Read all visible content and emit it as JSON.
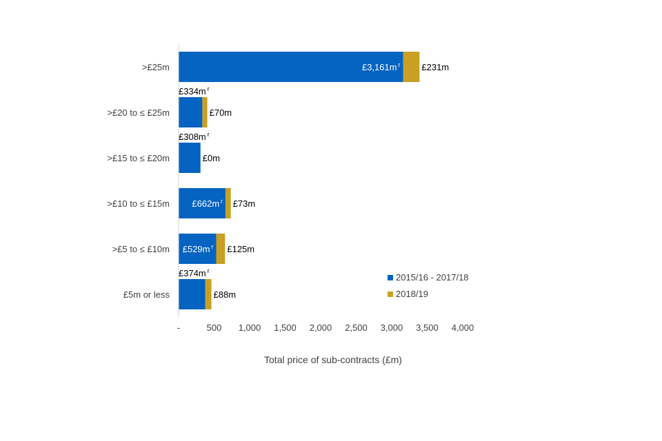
{
  "chart_data": {
    "type": "bar",
    "orientation": "horizontal",
    "stacked": true,
    "categories": [
      ">£25m",
      ">£20 to ≤ £25m",
      ">£15 to ≤ £20m",
      ">£10 to ≤ £15m",
      ">£5 to ≤ £10m",
      "£5m or less"
    ],
    "series": [
      {
        "name": "2015/16 - 2017/18",
        "color": "#0563C1",
        "values": [
          3161,
          334,
          308,
          662,
          529,
          374
        ],
        "labels": [
          "£3,161m",
          "£334m",
          "£308m",
          "£662m",
          "£529m",
          "£374m"
        ],
        "label_marker": "r",
        "label_placement": [
          "inside",
          "above",
          "above",
          "inside",
          "inside",
          "above"
        ]
      },
      {
        "name": "2018/19",
        "color": "#C9A023",
        "values": [
          231,
          70,
          0,
          73,
          125,
          88
        ],
        "labels": [
          "£231m",
          "£70m",
          "£0m",
          "£73m",
          "£125m",
          "£88m"
        ]
      }
    ],
    "xlabel": "Total price of sub-contracts (£m)",
    "xlim": [
      0,
      4000
    ],
    "xticks": [
      0,
      500,
      1000,
      1500,
      2000,
      2500,
      3000,
      3500,
      4000
    ],
    "xtick_labels": [
      "-",
      "500",
      "1,000",
      "1,500",
      "2,000",
      "2,500",
      "3,000",
      "3,500",
      "4,000"
    ],
    "grid": false,
    "legend_position": "bottom-right"
  }
}
